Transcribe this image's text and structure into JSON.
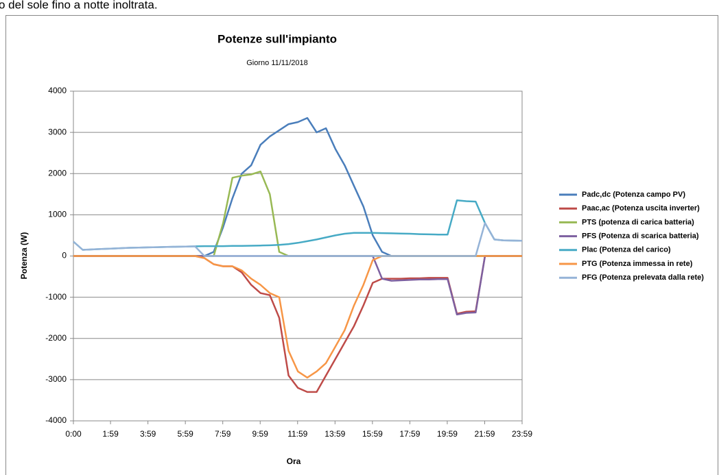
{
  "caption": "o del sole fino a notte inoltrata.",
  "chart_data": {
    "type": "line",
    "title": "Potenze sull'impianto",
    "subtitle": "Giorno 11/11/2018",
    "xlabel": "Ora",
    "ylabel": "Potenza (W)",
    "x": [
      0,
      30,
      60,
      90,
      120,
      150,
      180,
      210,
      240,
      270,
      300,
      330,
      360,
      390,
      420,
      450,
      480,
      510,
      540,
      570,
      600,
      630,
      660,
      690,
      720,
      750,
      780,
      810,
      840,
      870,
      900,
      930,
      960,
      990,
      1020,
      1050,
      1080,
      1110,
      1140,
      1170,
      1200,
      1230,
      1260,
      1290,
      1320,
      1350,
      1380,
      1410,
      1439
    ],
    "xlim": [
      0,
      1439
    ],
    "xticks": [
      {
        "value": 0,
        "label": "0:00"
      },
      {
        "value": 119,
        "label": "1:59"
      },
      {
        "value": 239,
        "label": "3:59"
      },
      {
        "value": 359,
        "label": "5:59"
      },
      {
        "value": 479,
        "label": "7:59"
      },
      {
        "value": 599,
        "label": "9:59"
      },
      {
        "value": 719,
        "label": "11:59"
      },
      {
        "value": 839,
        "label": "13:59"
      },
      {
        "value": 959,
        "label": "15:59"
      },
      {
        "value": 1079,
        "label": "17:59"
      },
      {
        "value": 1199,
        "label": "19:59"
      },
      {
        "value": 1319,
        "label": "21:59"
      },
      {
        "value": 1439,
        "label": "23:59"
      }
    ],
    "ylim": [
      -4000,
      4000
    ],
    "yticks": [
      -4000,
      -3000,
      -2000,
      -1000,
      0,
      1000,
      2000,
      3000,
      4000
    ],
    "grid": true,
    "legend": "right",
    "series": [
      {
        "name": "Padc,dc (Potenza campo PV)",
        "color": "#4a7ebb",
        "values": [
          0,
          0,
          0,
          0,
          0,
          0,
          0,
          0,
          0,
          0,
          0,
          0,
          0,
          0,
          0,
          100,
          700,
          1400,
          2000,
          2200,
          2700,
          2900,
          3050,
          3200,
          3250,
          3350,
          3000,
          3100,
          2600,
          2200,
          1700,
          1200,
          500,
          100,
          0,
          0,
          0,
          0,
          0,
          0,
          0,
          0,
          0,
          0,
          0,
          0,
          0,
          0,
          0
        ]
      },
      {
        "name": "Paac,ac (Potenza uscita inverter)",
        "color": "#be4b48",
        "values": [
          0,
          0,
          0,
          0,
          0,
          0,
          0,
          0,
          0,
          0,
          0,
          0,
          0,
          0,
          -50,
          -200,
          -250,
          -250,
          -400,
          -700,
          -900,
          -950,
          -1500,
          -2900,
          -3200,
          -3300,
          -3300,
          -2900,
          -2500,
          -2100,
          -1700,
          -1200,
          -650,
          -550,
          -550,
          -550,
          -540,
          -540,
          -530,
          -530,
          -530,
          -1400,
          -1350,
          -1340,
          0,
          0,
          0,
          0,
          0
        ]
      },
      {
        "name": "PTS (potenza di carica batteria)",
        "color": "#98b954",
        "values": [
          0,
          0,
          0,
          0,
          0,
          0,
          0,
          0,
          0,
          0,
          0,
          0,
          0,
          0,
          0,
          0,
          800,
          1900,
          1950,
          1980,
          2050,
          1500,
          100,
          0,
          0,
          0,
          0,
          0,
          0,
          0,
          0,
          0,
          0,
          0,
          0,
          0,
          0,
          0,
          0,
          0,
          0,
          0,
          0,
          0,
          0,
          0,
          0,
          0,
          0
        ]
      },
      {
        "name": "PFS (Potenza di scarica batteria)",
        "color": "#7d60a0",
        "values": [
          0,
          0,
          0,
          0,
          0,
          0,
          0,
          0,
          0,
          0,
          0,
          0,
          0,
          0,
          0,
          0,
          0,
          0,
          0,
          0,
          0,
          0,
          0,
          0,
          0,
          0,
          0,
          0,
          0,
          0,
          0,
          0,
          0,
          -550,
          -600,
          -590,
          -580,
          -570,
          -570,
          -560,
          -560,
          -1420,
          -1380,
          -1370,
          0,
          0,
          0,
          0,
          0
        ]
      },
      {
        "name": "Plac (Potenza del carico)",
        "color": "#46aac5",
        "values": [
          350,
          150,
          160,
          170,
          180,
          190,
          200,
          205,
          210,
          215,
          220,
          225,
          230,
          235,
          240,
          240,
          240,
          245,
          245,
          250,
          255,
          260,
          270,
          290,
          320,
          360,
          400,
          450,
          500,
          540,
          560,
          560,
          560,
          555,
          550,
          545,
          540,
          530,
          525,
          520,
          520,
          1350,
          1330,
          1320,
          800,
          400,
          380,
          375,
          370
        ]
      },
      {
        "name": "PTG (Potenza immessa in rete)",
        "color": "#f79646",
        "values": [
          0,
          0,
          0,
          0,
          0,
          0,
          0,
          0,
          0,
          0,
          0,
          0,
          0,
          0,
          -50,
          -200,
          -250,
          -250,
          -350,
          -550,
          -700,
          -900,
          -1000,
          -2300,
          -2800,
          -2950,
          -2800,
          -2600,
          -2200,
          -1800,
          -1200,
          -700,
          -100,
          0,
          0,
          0,
          0,
          0,
          0,
          0,
          0,
          0,
          0,
          0,
          0,
          0,
          0,
          0,
          0
        ]
      },
      {
        "name": "PFG (Potenza prelevata dalla rete)",
        "color": "#95b3d7",
        "values": [
          350,
          150,
          160,
          170,
          180,
          190,
          200,
          205,
          210,
          215,
          220,
          225,
          230,
          235,
          0,
          0,
          0,
          0,
          0,
          0,
          0,
          0,
          0,
          0,
          0,
          0,
          0,
          0,
          0,
          0,
          0,
          0,
          0,
          0,
          0,
          0,
          0,
          0,
          0,
          0,
          0,
          0,
          0,
          0,
          800,
          400,
          380,
          375,
          370
        ]
      }
    ]
  }
}
